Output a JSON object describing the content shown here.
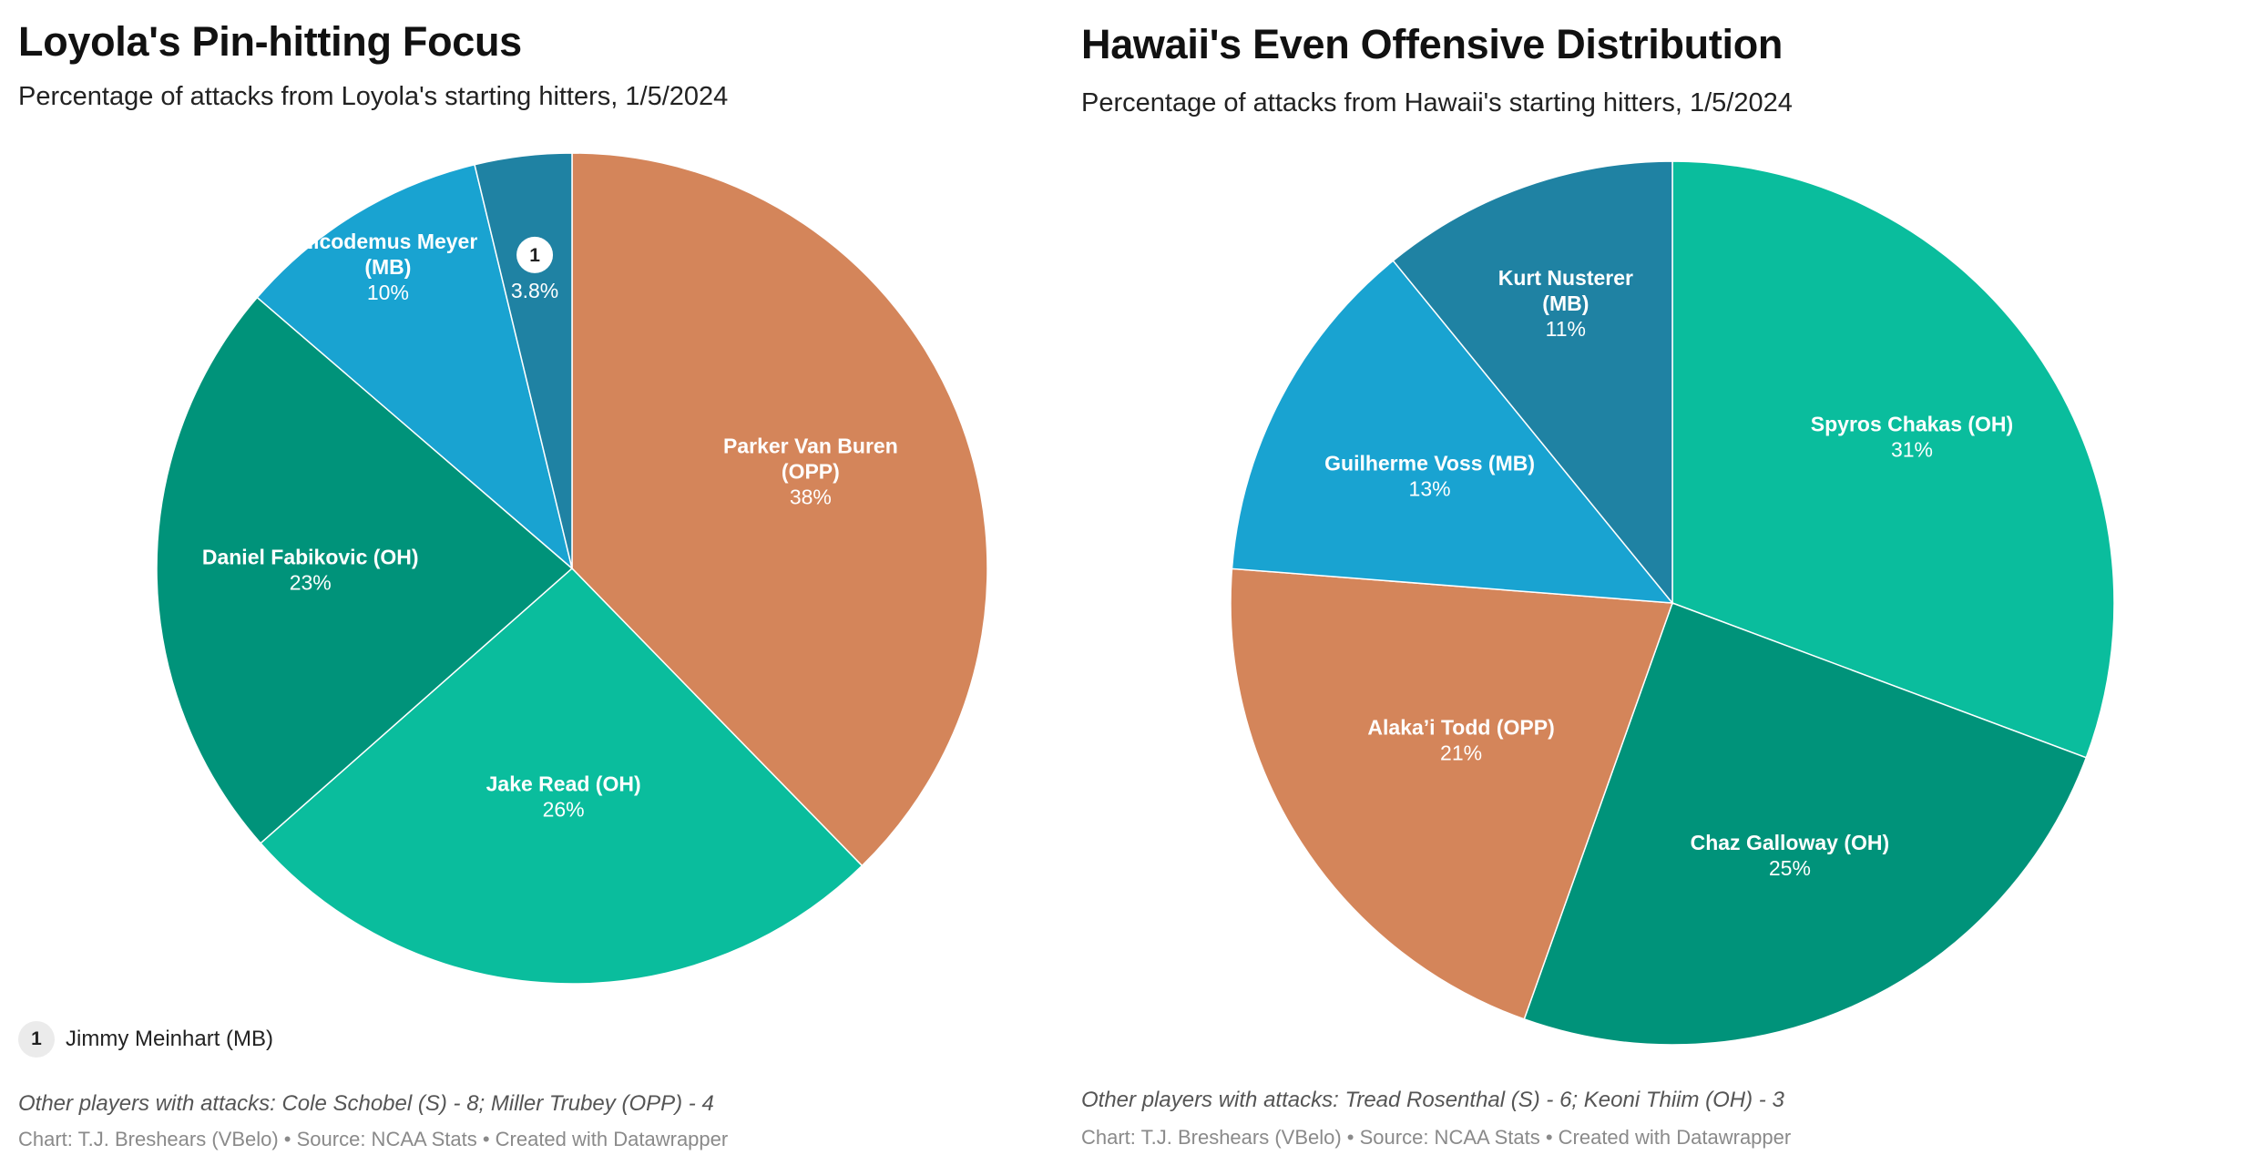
{
  "chart_data": [
    {
      "type": "pie",
      "title": "Loyola's Pin-hitting Focus",
      "subtitle": "Percentage of attacks from Loyola's starting hitters, 1/5/2024",
      "categories": [
        "Parker Van Buren (OPP)",
        "Jake Read (OH)",
        "Daniel Fabikovic (OH)",
        "Nicodemus Meyer (MB)",
        "Jimmy Meinhart (MB)"
      ],
      "values": [
        38,
        26,
        23,
        10,
        3.8
      ],
      "value_labels": [
        "38%",
        "26%",
        "23%",
        "10%",
        "3.8%"
      ],
      "colors": [
        "#d4855a",
        "#0abd9d",
        "#00937a",
        "#19a3d1",
        "#1f82a3"
      ],
      "annotation": {
        "marker": "1",
        "category": "Jimmy Meinhart (MB)",
        "key_text": "Jimmy Meinhart (MB)"
      },
      "notes": "Other players with attacks: Cole Schobel (S) - 8; Miller Trubey (OPP) - 4",
      "credit": "Chart: T.J. Breshears (VBelo) • Source: NCAA Stats • Created with Datawrapper"
    },
    {
      "type": "pie",
      "title": "Hawaii's Even Offensive Distribution",
      "subtitle": "Percentage of attacks from Hawaii's starting hitters, 1/5/2024",
      "categories": [
        "Spyros Chakas (OH)",
        "Chaz Galloway (OH)",
        "Alaka’i Todd (OPP)",
        "Guilherme Voss (MB)",
        "Kurt Nusterer (MB)"
      ],
      "values": [
        31,
        25,
        21,
        13,
        11
      ],
      "value_labels": [
        "31%",
        "25%",
        "21%",
        "13%",
        "11%"
      ],
      "colors": [
        "#0abd9d",
        "#00937a",
        "#d4855a",
        "#19a3d1",
        "#1f82a3"
      ],
      "notes": "Other players with attacks: Tread Rosenthal (S) - 6; Keoni Thiim (OH) - 3",
      "credit": "Chart: T.J. Breshears (VBelo) • Source: NCAA Stats • Created with Datawrapper"
    }
  ]
}
